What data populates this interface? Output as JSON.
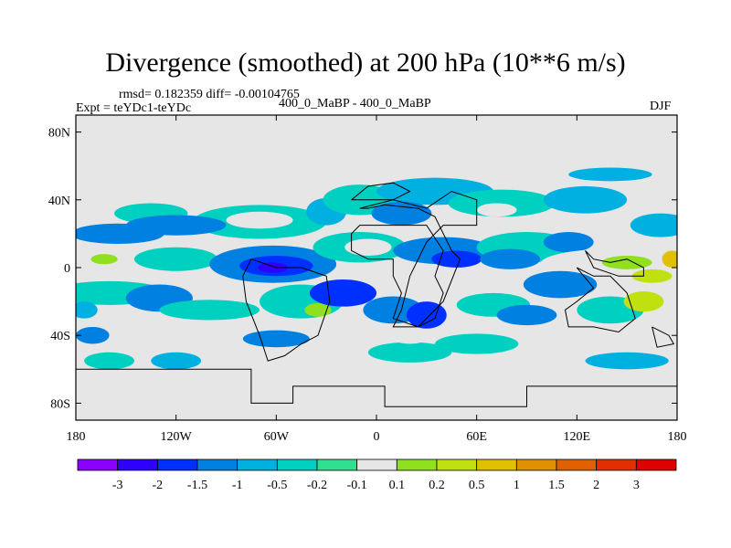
{
  "title": "Divergence (smoothed) at 200 hPa (10**6 m/s)",
  "stats_line": "rmsd= 0.182359 diff= -0.00104765",
  "experiment_line": "Expt = teYDc1-teYDc",
  "center_label": "400_0_MaBP - 400_0_MaBP",
  "season_label": "DJF",
  "colors": {
    "background_fill": "#e6e6e6",
    "frame": "#000000"
  },
  "map": {
    "lon_range": [
      -180,
      180
    ],
    "lat_range": [
      -90,
      90
    ],
    "lat_ticks": [
      {
        "value": 80,
        "label": "80N"
      },
      {
        "value": 40,
        "label": "40N"
      },
      {
        "value": 0,
        "label": "0"
      },
      {
        "value": -40,
        "label": "40S"
      },
      {
        "value": -80,
        "label": "80S"
      }
    ],
    "lon_ticks": [
      {
        "value": -180,
        "label": "180"
      },
      {
        "value": -120,
        "label": "120W"
      },
      {
        "value": -60,
        "label": "60W"
      },
      {
        "value": 0,
        "label": "0"
      },
      {
        "value": 60,
        "label": "60E"
      },
      {
        "value": 120,
        "label": "120E"
      },
      {
        "value": 180,
        "label": "180"
      }
    ],
    "blobs": [
      {
        "lon": -135,
        "lat": 32,
        "rlon": 22,
        "rlat": 6,
        "level": 5
      },
      {
        "lon": -70,
        "lat": 27,
        "rlon": 40,
        "rlat": 10,
        "level": 5
      },
      {
        "lon": -70,
        "lat": 28,
        "rlon": 20,
        "rlat": 5,
        "level": 7
      },
      {
        "lon": -30,
        "lat": 33,
        "rlon": 12,
        "rlat": 8,
        "level": 4
      },
      {
        "lon": -10,
        "lat": 40,
        "rlon": 22,
        "rlat": 9,
        "level": 5
      },
      {
        "lon": 35,
        "lat": 45,
        "rlon": 35,
        "rlat": 8,
        "level": 4
      },
      {
        "lon": 15,
        "lat": 32,
        "rlon": 18,
        "rlat": 7,
        "level": 3
      },
      {
        "lon": 75,
        "lat": 38,
        "rlon": 32,
        "rlat": 8,
        "level": 5
      },
      {
        "lon": 72,
        "lat": 34,
        "rlon": 12,
        "rlat": 4,
        "level": 7
      },
      {
        "lon": 125,
        "lat": 40,
        "rlon": 25,
        "rlat": 8,
        "level": 4
      },
      {
        "lon": 170,
        "lat": 25,
        "rlon": 18,
        "rlat": 7,
        "level": 4
      },
      {
        "lon": 140,
        "lat": 55,
        "rlon": 25,
        "rlat": 4,
        "level": 4
      },
      {
        "lon": -155,
        "lat": 20,
        "rlon": 28,
        "rlat": 6,
        "level": 3
      },
      {
        "lon": -165,
        "lat": 5,
        "rlon": 22,
        "rlat": 8,
        "level": 7
      },
      {
        "lon": -163,
        "lat": 5,
        "rlon": 8,
        "rlat": 3,
        "level": 8
      },
      {
        "lon": -120,
        "lat": 5,
        "rlon": 25,
        "rlat": 7,
        "level": 5
      },
      {
        "lon": -120,
        "lat": 25,
        "rlon": 30,
        "rlat": 6,
        "level": 3
      },
      {
        "lon": -62,
        "lat": 2,
        "rlon": 38,
        "rlat": 11,
        "level": 3
      },
      {
        "lon": -60,
        "lat": 1,
        "rlon": 22,
        "rlat": 6,
        "level": 2
      },
      {
        "lon": -62,
        "lat": 0,
        "rlon": 9,
        "rlat": 3,
        "level": 1
      },
      {
        "lon": -10,
        "lat": 12,
        "rlon": 28,
        "rlat": 9,
        "level": 5
      },
      {
        "lon": -5,
        "lat": 12,
        "rlon": 14,
        "rlat": 5,
        "level": 7
      },
      {
        "lon": 40,
        "lat": 10,
        "rlon": 30,
        "rlat": 8,
        "level": 3
      },
      {
        "lon": 48,
        "lat": 5,
        "rlon": 15,
        "rlat": 5,
        "level": 2
      },
      {
        "lon": 90,
        "lat": 12,
        "rlon": 30,
        "rlat": 9,
        "level": 5
      },
      {
        "lon": 80,
        "lat": 5,
        "rlon": 18,
        "rlat": 6,
        "level": 3
      },
      {
        "lon": 115,
        "lat": 15,
        "rlon": 15,
        "rlat": 6,
        "level": 3
      },
      {
        "lon": 140,
        "lat": 2,
        "rlon": 42,
        "rlat": 9,
        "level": 7
      },
      {
        "lon": 150,
        "lat": 3,
        "rlon": 15,
        "rlat": 4,
        "level": 8
      },
      {
        "lon": 165,
        "lat": -5,
        "rlon": 12,
        "rlat": 4,
        "level": 9
      },
      {
        "lon": 177,
        "lat": 5,
        "rlon": 6,
        "rlat": 5,
        "level": 10
      },
      {
        "lon": -160,
        "lat": -15,
        "rlon": 35,
        "rlat": 7,
        "level": 5
      },
      {
        "lon": -170,
        "lat": -40,
        "rlon": 10,
        "rlat": 5,
        "level": 3
      },
      {
        "lon": -130,
        "lat": -18,
        "rlon": 20,
        "rlat": 8,
        "level": 3
      },
      {
        "lon": -100,
        "lat": -25,
        "rlon": 30,
        "rlat": 6,
        "level": 5
      },
      {
        "lon": -45,
        "lat": -20,
        "rlon": 25,
        "rlat": 10,
        "level": 5
      },
      {
        "lon": -35,
        "lat": -25,
        "rlon": 8,
        "rlat": 4,
        "level": 8
      },
      {
        "lon": -20,
        "lat": -15,
        "rlon": 20,
        "rlat": 8,
        "level": 2
      },
      {
        "lon": 10,
        "lat": -25,
        "rlon": 18,
        "rlat": 8,
        "level": 3
      },
      {
        "lon": 30,
        "lat": -28,
        "rlon": 12,
        "rlat": 8,
        "level": 2
      },
      {
        "lon": 70,
        "lat": -22,
        "rlon": 22,
        "rlat": 7,
        "level": 5
      },
      {
        "lon": 90,
        "lat": -28,
        "rlon": 18,
        "rlat": 6,
        "level": 3
      },
      {
        "lon": 110,
        "lat": -10,
        "rlon": 22,
        "rlat": 8,
        "level": 3
      },
      {
        "lon": 140,
        "lat": -25,
        "rlon": 20,
        "rlat": 8,
        "level": 5
      },
      {
        "lon": 160,
        "lat": -20,
        "rlon": 12,
        "rlat": 6,
        "level": 9
      },
      {
        "lon": -175,
        "lat": -25,
        "rlon": 8,
        "rlat": 5,
        "level": 4
      },
      {
        "lon": -160,
        "lat": -55,
        "rlon": 15,
        "rlat": 5,
        "level": 5
      },
      {
        "lon": -120,
        "lat": -55,
        "rlon": 15,
        "rlat": 5,
        "level": 4
      },
      {
        "lon": -60,
        "lat": -42,
        "rlon": 20,
        "rlat": 5,
        "level": 3
      },
      {
        "lon": 20,
        "lat": -50,
        "rlon": 25,
        "rlat": 6,
        "level": 5
      },
      {
        "lon": 60,
        "lat": -45,
        "rlon": 25,
        "rlat": 6,
        "level": 5
      },
      {
        "lon": 150,
        "lat": -55,
        "rlon": 25,
        "rlat": 5,
        "level": 4
      },
      {
        "lon": 20,
        "lat": -40,
        "rlon": 12,
        "rlat": 5,
        "level": 7
      }
    ],
    "outlines": [
      [
        [
          -180,
          -60
        ],
        [
          -75,
          -60
        ],
        [
          -75,
          -80
        ],
        [
          -50,
          -80
        ],
        [
          -50,
          -70
        ],
        [
          5,
          -70
        ],
        [
          5,
          -82
        ],
        [
          90,
          -82
        ],
        [
          90,
          -70
        ],
        [
          150,
          -70
        ],
        [
          180,
          -70
        ]
      ],
      [
        [
          -45,
          0
        ],
        [
          -30,
          -5
        ],
        [
          -28,
          -20
        ],
        [
          -35,
          -40
        ],
        [
          -45,
          -45
        ],
        [
          -55,
          -52
        ],
        [
          -65,
          -55
        ],
        [
          -70,
          -40
        ],
        [
          -78,
          -20
        ],
        [
          -80,
          -5
        ],
        [
          -75,
          5
        ],
        [
          -60,
          0
        ],
        [
          -45,
          0
        ]
      ],
      [
        [
          -10,
          35
        ],
        [
          10,
          40
        ],
        [
          30,
          35
        ],
        [
          45,
          45
        ],
        [
          60,
          40
        ],
        [
          60,
          25
        ],
        [
          40,
          25
        ],
        [
          30,
          15
        ],
        [
          20,
          -5
        ],
        [
          15,
          -25
        ],
        [
          10,
          -35
        ],
        [
          25,
          -35
        ],
        [
          40,
          -20
        ],
        [
          50,
          5
        ],
        [
          45,
          10
        ],
        [
          35,
          30
        ],
        [
          25,
          35
        ],
        [
          5,
          37
        ],
        [
          -5,
          35
        ],
        [
          -10,
          35
        ]
      ],
      [
        [
          -10,
          25
        ],
        [
          -15,
          20
        ],
        [
          -15,
          10
        ],
        [
          -5,
          5
        ],
        [
          10,
          5
        ],
        [
          10,
          -5
        ],
        [
          15,
          -15
        ],
        [
          10,
          -30
        ],
        [
          25,
          -35
        ],
        [
          35,
          -30
        ],
        [
          40,
          -15
        ],
        [
          35,
          -5
        ],
        [
          40,
          10
        ],
        [
          30,
          25
        ],
        [
          -10,
          25
        ]
      ],
      [
        [
          120,
          0
        ],
        [
          130,
          -5
        ],
        [
          140,
          -5
        ],
        [
          150,
          -15
        ],
        [
          155,
          -30
        ],
        [
          145,
          -38
        ],
        [
          130,
          -35
        ],
        [
          115,
          -35
        ],
        [
          113,
          -25
        ],
        [
          120,
          -20
        ],
        [
          130,
          -12
        ],
        [
          120,
          0
        ]
      ],
      [
        [
          125,
          10
        ],
        [
          130,
          5
        ],
        [
          140,
          3
        ],
        [
          150,
          5
        ],
        [
          160,
          0
        ],
        [
          160,
          -5
        ],
        [
          145,
          -5
        ],
        [
          130,
          0
        ],
        [
          125,
          10
        ]
      ],
      [
        [
          165,
          -35
        ],
        [
          175,
          -40
        ],
        [
          178,
          -45
        ],
        [
          168,
          -47
        ],
        [
          165,
          -35
        ]
      ],
      [
        [
          -15,
          40
        ],
        [
          -5,
          48
        ],
        [
          10,
          50
        ],
        [
          20,
          45
        ],
        [
          10,
          40
        ],
        [
          -15,
          40
        ]
      ]
    ]
  },
  "colorbar": {
    "fill_colors": [
      "#8b00ff",
      "#3000ff",
      "#0030ff",
      "#0080e0",
      "#00b0e0",
      "#00d0c0",
      "#30e090",
      "#e6e6e6",
      "#90e020",
      "#c0e010",
      "#e0c000",
      "#e09000",
      "#e06000",
      "#e03000",
      "#e00000"
    ],
    "labels": [
      "-3",
      "-2",
      "-1.5",
      "-1",
      "-0.5",
      "-0.2",
      "-0.1",
      "0.1",
      "0.2",
      "0.5",
      "1",
      "1.5",
      "2",
      "3"
    ]
  }
}
